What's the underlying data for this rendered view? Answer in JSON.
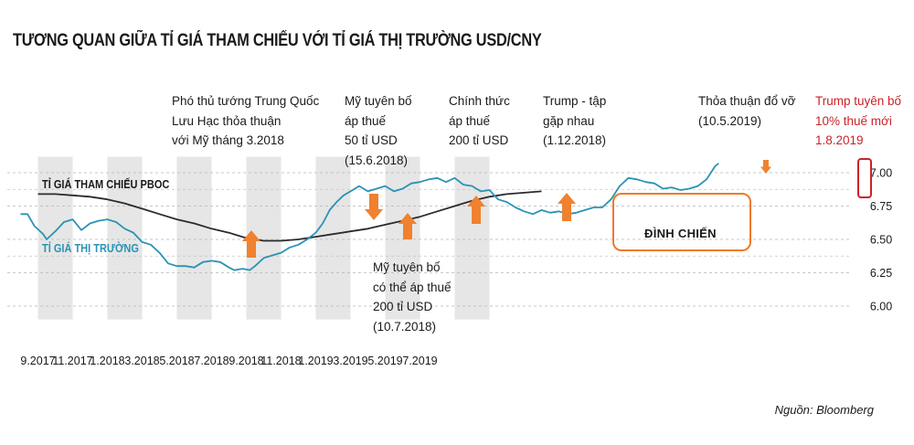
{
  "chart_data": {
    "type": "line",
    "title": "TƯƠNG QUAN GIỮA TỈ GIÁ THAM CHIẾU VỚI TỈ GIÁ THỊ TRƯỜNG USD/CNY",
    "ylim": [
      5.9,
      7.12
    ],
    "yticks": [
      "6.00",
      "6.25",
      "6.50",
      "6.75",
      "7.00"
    ],
    "ytick_values": [
      6.0,
      6.25,
      6.5,
      6.75,
      7.0
    ],
    "xticks": [
      "9.2017",
      "11.2017",
      "1.2018",
      "3.2018",
      "5.2018",
      "7.2018",
      "9.2018",
      "11.2018",
      "1.2019",
      "3.2019",
      "5.2019",
      "7.2019"
    ],
    "grid": "horizontal-dashed",
    "shaded_months": [
      1,
      5,
      9,
      13,
      17,
      21,
      25
    ],
    "series": [
      {
        "name": "TỈ GIÁ THAM CHIẾU PBOC",
        "color": "#2b2b2b",
        "points": [
          [
            0,
            6.84
          ],
          [
            1,
            6.84
          ],
          [
            2,
            6.83
          ],
          [
            3,
            6.82
          ],
          [
            4,
            6.8
          ],
          [
            5,
            6.77
          ],
          [
            6,
            6.73
          ],
          [
            7,
            6.69
          ],
          [
            8,
            6.65
          ],
          [
            9,
            6.62
          ],
          [
            10,
            6.58
          ],
          [
            11,
            6.55
          ],
          [
            12,
            6.51
          ],
          [
            13,
            6.49
          ],
          [
            14,
            6.49
          ],
          [
            15,
            6.5
          ],
          [
            16,
            6.52
          ],
          [
            17,
            6.54
          ],
          [
            18,
            6.56
          ],
          [
            19,
            6.58
          ],
          [
            20,
            6.61
          ],
          [
            21,
            6.64
          ],
          [
            22,
            6.67
          ],
          [
            23,
            6.71
          ],
          [
            24,
            6.75
          ],
          [
            25,
            6.79
          ],
          [
            26,
            6.82
          ],
          [
            27,
            6.84
          ],
          [
            28,
            6.85
          ],
          [
            29,
            6.86
          ]
        ]
      },
      {
        "name": "TỈ GIÁ THỊ TRƯỜNG",
        "color": "#2a93b4",
        "points": [
          [
            -1,
            6.69
          ],
          [
            -0.6,
            6.69
          ],
          [
            -0.2,
            6.6
          ],
          [
            0.3,
            6.54
          ],
          [
            0.5,
            6.5
          ],
          [
            1.0,
            6.56
          ],
          [
            1.5,
            6.63
          ],
          [
            2.0,
            6.65
          ],
          [
            2.5,
            6.57
          ],
          [
            3.0,
            6.62
          ],
          [
            3.5,
            6.64
          ],
          [
            4.0,
            6.65
          ],
          [
            4.5,
            6.63
          ],
          [
            5.0,
            6.58
          ],
          [
            5.5,
            6.55
          ],
          [
            6.0,
            6.48
          ],
          [
            6.5,
            6.46
          ],
          [
            7.0,
            6.4
          ],
          [
            7.5,
            6.32
          ],
          [
            8.0,
            6.3
          ],
          [
            8.5,
            6.3
          ],
          [
            9.0,
            6.29
          ],
          [
            9.5,
            6.33
          ],
          [
            10.0,
            6.34
          ],
          [
            10.5,
            6.33
          ],
          [
            11.0,
            6.29
          ],
          [
            11.3,
            6.27
          ],
          [
            11.8,
            6.28
          ],
          [
            12.2,
            6.27
          ],
          [
            12.5,
            6.3
          ],
          [
            13.0,
            6.36
          ],
          [
            13.5,
            6.38
          ],
          [
            14.0,
            6.4
          ],
          [
            14.5,
            6.44
          ],
          [
            15.0,
            6.46
          ],
          [
            15.5,
            6.5
          ],
          [
            16.0,
            6.55
          ],
          [
            16.4,
            6.62
          ],
          [
            16.8,
            6.72
          ],
          [
            17.2,
            6.78
          ],
          [
            17.6,
            6.83
          ],
          [
            18.0,
            6.86
          ],
          [
            18.5,
            6.9
          ],
          [
            19.0,
            6.86
          ],
          [
            19.5,
            6.88
          ],
          [
            20.0,
            6.9
          ],
          [
            20.5,
            6.86
          ],
          [
            21.0,
            6.88
          ],
          [
            21.5,
            6.92
          ],
          [
            22.0,
            6.93
          ],
          [
            22.5,
            6.95
          ],
          [
            23.0,
            6.96
          ],
          [
            23.5,
            6.93
          ],
          [
            24.0,
            6.96
          ],
          [
            24.5,
            6.91
          ],
          [
            25.0,
            6.9
          ],
          [
            25.5,
            6.86
          ],
          [
            26.0,
            6.87
          ],
          [
            26.5,
            6.8
          ],
          [
            27.0,
            6.78
          ],
          [
            27.5,
            6.74
          ],
          [
            28.0,
            6.71
          ],
          [
            28.5,
            6.69
          ],
          [
            29.0,
            6.72
          ],
          [
            29.5,
            6.7
          ],
          [
            30.0,
            6.71
          ],
          [
            30.5,
            6.69
          ],
          [
            31.0,
            6.7
          ],
          [
            31.5,
            6.72
          ],
          [
            32.0,
            6.74
          ],
          [
            32.5,
            6.74
          ],
          [
            33.0,
            6.8
          ],
          [
            33.5,
            6.9
          ],
          [
            34.0,
            6.96
          ],
          [
            34.5,
            6.95
          ],
          [
            35.0,
            6.93
          ],
          [
            35.5,
            6.92
          ],
          [
            36.0,
            6.88
          ],
          [
            36.5,
            6.89
          ],
          [
            37.0,
            6.87
          ],
          [
            37.5,
            6.88
          ],
          [
            38.0,
            6.9
          ],
          [
            38.5,
            6.95
          ],
          [
            39.0,
            7.05
          ],
          [
            39.2,
            7.07
          ]
        ]
      }
    ],
    "annotations": [
      {
        "text": "Phó thủ tướng Trung Quốc\nLưu Hạc thỏa thuận\nvới Mỹ tháng 3.2018",
        "color": "#1a1a1a"
      },
      {
        "text": "Mỹ tuyên bố\náp thuế\n50 tỉ USD\n(15.6.2018)",
        "color": "#1a1a1a"
      },
      {
        "text": "Chính thức\náp thuế\n200 tỉ USD",
        "color": "#1a1a1a"
      },
      {
        "text": "Trump - tập\ngặp nhau\n(1.12.2018)",
        "color": "#1a1a1a"
      },
      {
        "text": "Thỏa thuận đổ vỡ\n(10.5.2019)",
        "color": "#1a1a1a"
      },
      {
        "text": "Trump tuyên bố\n10% thuế mới\n1.8.2019",
        "color": "#cc2229"
      },
      {
        "text": "Mỹ tuyên bố\ncó thể áp thuế\n200 tỉ USD\n(10.7.2018)",
        "color": "#1a1a1a"
      }
    ],
    "truce_label": "ĐÌNH CHIẾN",
    "source": "Nguồn: Bloomberg"
  },
  "colors": {
    "pboc_line": "#2b2b2b",
    "market_line": "#2a93b4",
    "shade": "#e6e6e6",
    "arrow": "#f0812f",
    "truce_box": "#ee7a2c",
    "highlight_box": "#cc2229",
    "red_text": "#cc2229"
  }
}
